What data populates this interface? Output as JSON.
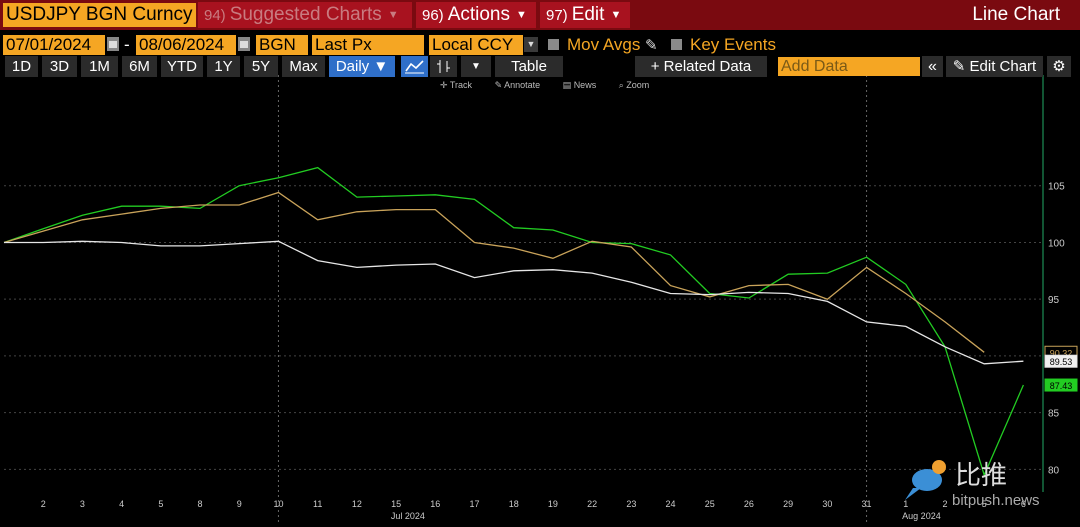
{
  "header": {
    "ticker": "USDJPY BGN Curncy",
    "suggested": {
      "num": "94)",
      "label": "Suggested Charts"
    },
    "actions": {
      "num": "96)",
      "label": "Actions"
    },
    "edit": {
      "num": "97)",
      "label": "Edit"
    },
    "title": "Line Chart"
  },
  "controls": {
    "start_date": "07/01/2024",
    "end_date": "08/06/2024",
    "dash": "-",
    "source": "BGN",
    "field": "Last Px",
    "currency": "Local CCY",
    "mov_avgs": "Mov Avgs",
    "key_events": "Key Events"
  },
  "periods": {
    "p1d": "1D",
    "p3d": "3D",
    "p1m": "1M",
    "p6m": "6M",
    "pytd": "YTD",
    "p1y": "1Y",
    "p5y": "5Y",
    "pmax": "Max",
    "freq": "Daily ▼",
    "table": "Table",
    "related": "+ Related Data",
    "add_data": "Add Data",
    "edit_chart": "Edit Chart"
  },
  "tools": {
    "track": "Track",
    "annotate": "Annotate",
    "news": "News",
    "zoom": "Zoom"
  },
  "watermark": {
    "text": "比推",
    "url": "bitpush.news"
  },
  "colors": {
    "green": "#22cc22",
    "orange": "#c9a35a",
    "white": "#e6e6e6",
    "accent": "#f5a623",
    "brand_red": "#a8121f"
  },
  "chart_data": {
    "type": "line",
    "x": [
      "Jul 1",
      "Jul 2",
      "Jul 3",
      "Jul 4",
      "Jul 5",
      "Jul 8",
      "Jul 9",
      "Jul 10",
      "Jul 11",
      "Jul 12",
      "Jul 15",
      "Jul 16",
      "Jul 17",
      "Jul 18",
      "Jul 19",
      "Jul 22",
      "Jul 23",
      "Jul 24",
      "Jul 25",
      "Jul 26",
      "Jul 29",
      "Jul 30",
      "Jul 31",
      "Aug 1",
      "Aug 2",
      "Aug 5",
      "Aug 6"
    ],
    "x_tick_labels": [
      "2",
      "3",
      "4",
      "5",
      "8",
      "9",
      "10",
      "11",
      "12",
      "15",
      "16",
      "17",
      "18",
      "19",
      "22",
      "23",
      "24",
      "25",
      "26",
      "29",
      "30",
      "31",
      "1",
      "2",
      "5",
      "6"
    ],
    "month_labels": [
      "Jul 2024",
      "Aug 2024"
    ],
    "ylim": [
      78,
      113
    ],
    "y_ticks": [
      80,
      85,
      90,
      95,
      100,
      105
    ],
    "series": [
      {
        "color": "#22cc22",
        "last_label": "87.43",
        "values": [
          100,
          101.2,
          102.4,
          103.2,
          103.2,
          103.0,
          105.0,
          105.7,
          106.6,
          104.0,
          104.1,
          104.2,
          103.8,
          101.3,
          101.1,
          100.0,
          99.9,
          98.9,
          95.5,
          95.1,
          97.2,
          97.3,
          98.7,
          96.3,
          90.8,
          79.5,
          87.43
        ]
      },
      {
        "color": "#c9a35a",
        "last_label": "90.32",
        "values": [
          100,
          101.0,
          102.0,
          102.5,
          103.0,
          103.3,
          103.3,
          104.4,
          102.0,
          102.7,
          102.9,
          102.9,
          100.0,
          99.5,
          98.6,
          100.1,
          99.6,
          96.2,
          95.2,
          96.2,
          96.3,
          95.0,
          97.8,
          95.5,
          93.0,
          90.32,
          null
        ]
      },
      {
        "color": "#e6e6e6",
        "last_label": "89.53",
        "values": [
          100,
          100.0,
          100.1,
          100.0,
          99.7,
          99.7,
          99.9,
          100.1,
          98.4,
          97.8,
          98.0,
          98.1,
          96.9,
          97.5,
          97.6,
          97.3,
          96.5,
          95.5,
          95.4,
          95.6,
          95.5,
          94.8,
          93.0,
          92.6,
          90.8,
          89.3,
          89.53
        ]
      }
    ],
    "grid": true
  }
}
